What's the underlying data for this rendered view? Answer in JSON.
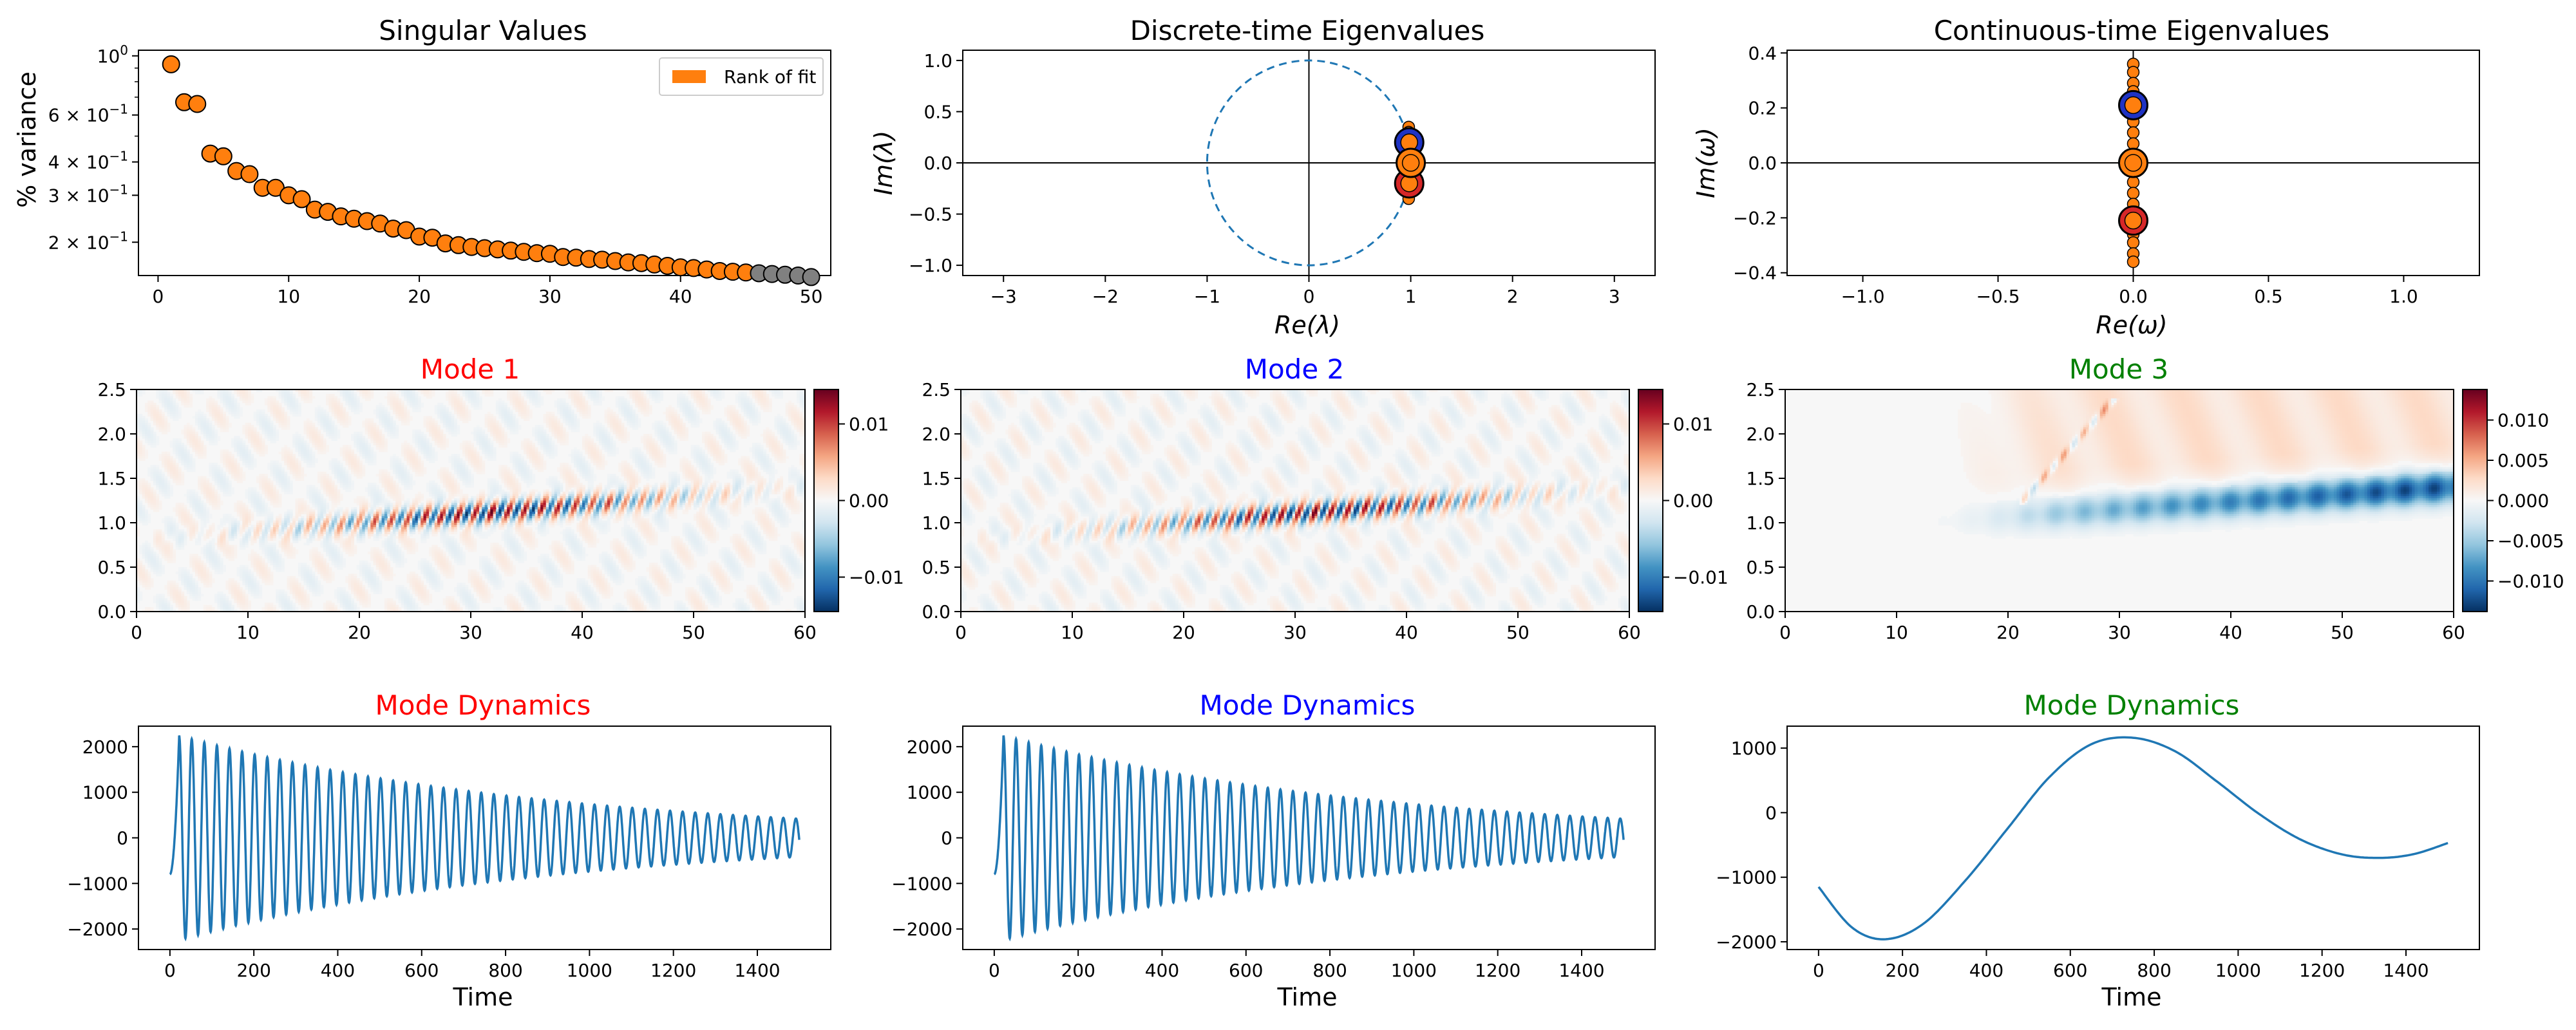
{
  "colors": {
    "mode1": "#ff0000",
    "mode2": "#0000ff",
    "mode3": "#008000",
    "sv_point": "#ff7f0e",
    "sv_unused": "#808080",
    "line": "#1f77b4"
  },
  "chart_data": [
    {
      "id": "singular-values",
      "type": "scatter",
      "title": "Singular Values",
      "ylabel": "% variance",
      "xlabel": "",
      "yscale": "log",
      "xlim": [
        -1.5,
        51.5
      ],
      "ylim": [
        0.15,
        1.05
      ],
      "x_ticks": [
        "0",
        "10",
        "20",
        "30",
        "40",
        "50"
      ],
      "y_ticks": [
        "10^0",
        "6 × 10^-1",
        "4 × 10^-1",
        "3 × 10^-1",
        "2 × 10^-1"
      ],
      "legend": {
        "label": "Rank of fit",
        "placement": "top-right"
      },
      "rank_of_fit": 45,
      "x": [
        1,
        2,
        3,
        4,
        5,
        6,
        7,
        8,
        9,
        10,
        11,
        12,
        13,
        14,
        15,
        16,
        17,
        18,
        19,
        20,
        21,
        22,
        23,
        24,
        25,
        26,
        27,
        28,
        29,
        30,
        31,
        32,
        33,
        34,
        35,
        36,
        37,
        38,
        39,
        40,
        41,
        42,
        43,
        44,
        45,
        46,
        47,
        48,
        49,
        50
      ],
      "values": [
        0.93,
        0.67,
        0.66,
        0.43,
        0.42,
        0.37,
        0.36,
        0.32,
        0.32,
        0.3,
        0.29,
        0.265,
        0.26,
        0.25,
        0.245,
        0.24,
        0.235,
        0.225,
        0.222,
        0.21,
        0.208,
        0.198,
        0.195,
        0.192,
        0.19,
        0.188,
        0.186,
        0.184,
        0.182,
        0.181,
        0.176,
        0.175,
        0.173,
        0.172,
        0.17,
        0.168,
        0.167,
        0.165,
        0.163,
        0.161,
        0.16,
        0.158,
        0.156,
        0.155,
        0.154,
        0.153,
        0.152,
        0.151,
        0.15,
        0.148
      ]
    },
    {
      "id": "discrete-eigenvalues",
      "type": "scatter",
      "title": "Discrete-time Eigenvalues",
      "xlabel": "Re(λ)",
      "ylabel": "Im(λ)",
      "xlim": [
        -3.4,
        3.4
      ],
      "ylim": [
        -1.1,
        1.1
      ],
      "x_ticks": [
        "−3",
        "−2",
        "−1",
        "0",
        "1",
        "2",
        "3"
      ],
      "y_ticks": [
        "1.0",
        "0.5",
        "0.0",
        "−0.5",
        "−1.0"
      ],
      "unit_circle": true,
      "points": [
        {
          "re": 1.0,
          "im": 0.0,
          "mode": "mode3"
        },
        {
          "re": 0.985,
          "im": 0.2,
          "mode": "mode2"
        },
        {
          "re": 0.985,
          "im": -0.2,
          "mode": "mode1"
        },
        {
          "re": 0.98,
          "im": 0.35,
          "mode": "other"
        },
        {
          "re": 0.98,
          "im": 0.3,
          "mode": "other"
        },
        {
          "re": 0.98,
          "im": 0.1,
          "mode": "other"
        },
        {
          "re": 0.98,
          "im": -0.1,
          "mode": "other"
        },
        {
          "re": 0.98,
          "im": -0.3,
          "mode": "other"
        },
        {
          "re": 0.98,
          "im": -0.35,
          "mode": "other"
        }
      ]
    },
    {
      "id": "continuous-eigenvalues",
      "type": "scatter",
      "title": "Continuous-time Eigenvalues",
      "xlabel": "Re(ω)",
      "ylabel": "Im(ω)",
      "xlim": [
        -1.28,
        1.28
      ],
      "ylim": [
        -0.41,
        0.41
      ],
      "x_ticks": [
        "−1.0",
        "−0.5",
        "0.0",
        "0.5",
        "1.0"
      ],
      "y_ticks": [
        "0.4",
        "0.2",
        "0.0",
        "−0.2",
        "−0.4"
      ],
      "points": [
        {
          "re": 0.0,
          "im": 0.0,
          "mode": "mode3"
        },
        {
          "re": 0.0,
          "im": 0.21,
          "mode": "mode2"
        },
        {
          "re": 0.0,
          "im": -0.21,
          "mode": "mode1"
        },
        {
          "re": 0.0,
          "im": 0.36,
          "mode": "other"
        },
        {
          "re": 0.0,
          "im": 0.33,
          "mode": "other"
        },
        {
          "re": 0.0,
          "im": 0.29,
          "mode": "other"
        },
        {
          "re": 0.0,
          "im": 0.26,
          "mode": "other"
        },
        {
          "re": 0.0,
          "im": 0.15,
          "mode": "other"
        },
        {
          "re": 0.0,
          "im": 0.11,
          "mode": "other"
        },
        {
          "re": 0.0,
          "im": 0.07,
          "mode": "other"
        },
        {
          "re": 0.0,
          "im": -0.07,
          "mode": "other"
        },
        {
          "re": 0.0,
          "im": -0.11,
          "mode": "other"
        },
        {
          "re": 0.0,
          "im": -0.15,
          "mode": "other"
        },
        {
          "re": 0.0,
          "im": -0.26,
          "mode": "other"
        },
        {
          "re": 0.0,
          "im": -0.29,
          "mode": "other"
        },
        {
          "re": 0.0,
          "im": -0.33,
          "mode": "other"
        },
        {
          "re": 0.0,
          "im": -0.36,
          "mode": "other"
        }
      ]
    },
    {
      "id": "mode-1",
      "type": "heatmap",
      "title": "Mode 1",
      "title_color": "mode1",
      "xlim": [
        0,
        60
      ],
      "ylim": [
        0,
        2.5
      ],
      "x_ticks": [
        "0",
        "10",
        "20",
        "30",
        "40",
        "50",
        "60"
      ],
      "y_ticks": [
        "2.5",
        "2.0",
        "1.5",
        "1.0",
        "0.5",
        "0.0"
      ],
      "colorbar": {
        "min": -0.0145,
        "max": 0.0145,
        "ticks": [
          "0.01",
          "0.00",
          "−0.01"
        ],
        "colormap": "RdBu_r"
      },
      "field": {
        "kind": "oscillating",
        "band_y_start": 0.8,
        "band_y_end": 1.4,
        "wavelength": 1.5,
        "peak_x": 32,
        "amplitude": 0.014
      }
    },
    {
      "id": "mode-2",
      "type": "heatmap",
      "title": "Mode 2",
      "title_color": "mode2",
      "xlim": [
        0,
        60
      ],
      "ylim": [
        0,
        2.5
      ],
      "x_ticks": [
        "0",
        "10",
        "20",
        "30",
        "40",
        "50",
        "60"
      ],
      "y_ticks": [
        "2.5",
        "2.0",
        "1.5",
        "1.0",
        "0.5",
        "0.0"
      ],
      "colorbar": {
        "min": -0.0145,
        "max": 0.0145,
        "ticks": [
          "0.01",
          "0.00",
          "−0.01"
        ],
        "colormap": "RdBu_r"
      },
      "field": {
        "kind": "oscillating",
        "band_y_start": 0.8,
        "band_y_end": 1.4,
        "wavelength": 1.5,
        "peak_x": 32,
        "amplitude": 0.014,
        "phase": 0.4
      }
    },
    {
      "id": "mode-3",
      "type": "heatmap",
      "title": "Mode 3",
      "title_color": "mode3",
      "xlim": [
        0,
        60
      ],
      "ylim": [
        0,
        2.5
      ],
      "x_ticks": [
        "0",
        "10",
        "20",
        "30",
        "40",
        "50",
        "60"
      ],
      "y_ticks": [
        "2.5",
        "2.0",
        "1.5",
        "1.0",
        "0.5",
        "0.0"
      ],
      "colorbar": {
        "min": -0.0138,
        "max": 0.0138,
        "ticks": [
          "0.010",
          "0.005",
          "0.000",
          "−0.005",
          "−0.010"
        ],
        "colormap": "RdBu_r"
      },
      "field": {
        "kind": "mean",
        "band_y_start": 0.9,
        "band_y_end": 1.4,
        "onset_x": 20,
        "amplitude": -0.013
      }
    },
    {
      "id": "dynamics-1",
      "type": "line",
      "title": "Mode Dynamics",
      "title_color": "mode1",
      "xlabel": "Time",
      "xlim": [
        -75,
        1575
      ],
      "ylim": [
        -2450,
        2450
      ],
      "x_ticks": [
        "0",
        "200",
        "400",
        "600",
        "800",
        "1000",
        "1200",
        "1400"
      ],
      "y_ticks": [
        "2000",
        "1000",
        "0",
        "−1000",
        "−2000"
      ],
      "signal": {
        "kind": "decaying-oscillation",
        "t_end": 1500,
        "cycles": 50,
        "amplitude_start": 2300,
        "amplitude_end": 420,
        "start_value": -800
      }
    },
    {
      "id": "dynamics-2",
      "type": "line",
      "title": "Mode Dynamics",
      "title_color": "mode2",
      "xlabel": "Time",
      "xlim": [
        -75,
        1575
      ],
      "ylim": [
        -2450,
        2450
      ],
      "x_ticks": [
        "0",
        "200",
        "400",
        "600",
        "800",
        "1000",
        "1200",
        "1400"
      ],
      "y_ticks": [
        "2000",
        "1000",
        "0",
        "−1000",
        "−2000"
      ],
      "signal": {
        "kind": "decaying-oscillation",
        "t_end": 1500,
        "cycles": 50,
        "amplitude_start": 2300,
        "amplitude_end": 420,
        "start_value": -800
      }
    },
    {
      "id": "dynamics-3",
      "type": "line",
      "title": "Mode Dynamics",
      "title_color": "mode3",
      "xlabel": "Time",
      "xlim": [
        -75,
        1575
      ],
      "ylim": [
        -2120,
        1340
      ],
      "x_ticks": [
        "0",
        "200",
        "400",
        "600",
        "800",
        "1000",
        "1200",
        "1400"
      ],
      "y_ticks": [
        "1000",
        "0",
        "−1000",
        "−2000"
      ],
      "x": [
        0,
        80,
        160,
        250,
        350,
        450,
        550,
        650,
        750,
        850,
        950,
        1050,
        1150,
        1250,
        1340,
        1420,
        1500
      ],
      "values": [
        -1150,
        -1780,
        -1960,
        -1720,
        -1050,
        -250,
        550,
        1060,
        1160,
        950,
        480,
        -20,
        -420,
        -650,
        -700,
        -640,
        -470
      ]
    }
  ]
}
